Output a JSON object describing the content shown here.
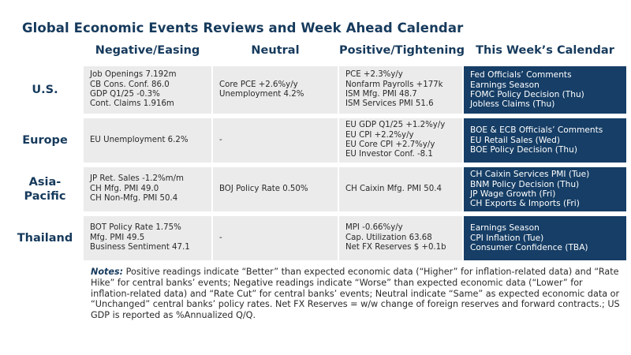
{
  "title": "Global Economic Events Reviews and Week Ahead Calendar",
  "columns": [
    "Negative/Easing",
    "Neutral",
    "Positive/Tightening",
    "This Week’s Calendar"
  ],
  "rows": [
    {
      "label": "U.S.",
      "negative": [
        "Job Openings 7.192m",
        "CB Cons. Conf. 86.0",
        "GDP Q1/25 -0.3%",
        "Cont. Claims 1.916m"
      ],
      "neutral": [
        "Core PCE +2.6%y/y",
        "Unemployment 4.2%"
      ],
      "positive": [
        "PCE +2.3%y/y",
        "Nonfarm Payrolls +177k",
        "ISM Mfg. PMI 48.7",
        "ISM Services PMI 51.6"
      ],
      "calendar": [
        "Fed Officials’ Comments",
        "Earnings Season",
        "FOMC Policy Decision (Thu)",
        "Jobless Claims (Thu)"
      ]
    },
    {
      "label": "Europe",
      "negative": [
        "EU Unemployment 6.2%"
      ],
      "neutral": [
        "-"
      ],
      "positive": [
        "EU GDP Q1/25 +1.2%y/y",
        "EU CPI +2.2%y/y",
        "EU Core CPI +2.7%y/y",
        "EU Investor Conf. -8.1"
      ],
      "calendar": [
        "BOE & ECB Officials’ Comments",
        "EU Retail Sales (Wed)",
        "BOE Policy Decision (Thu)"
      ]
    },
    {
      "label": [
        "Asia-",
        "Pacific"
      ],
      "negative": [
        "JP Ret. Sales -1.2%m/m",
        "CH Mfg. PMI 49.0",
        "CH Non-Mfg. PMI 50.4"
      ],
      "neutral": [
        "BOJ Policy Rate 0.50%"
      ],
      "positive": [
        "CH Caixin Mfg. PMI 50.4"
      ],
      "calendar": [
        "CH Caixin Services PMI (Tue)",
        "BNM Policy Decision (Thu)",
        "JP Wage Growth (Fri)",
        "CH Exports & Imports (Fri)"
      ]
    },
    {
      "label": "Thailand",
      "negative": [
        "BOT Policy Rate 1.75%",
        "Mfg. PMI 49.5",
        "Business Sentiment 47.1"
      ],
      "neutral": [
        "-"
      ],
      "positive": [
        "MPI -0.66%y/y",
        "Cap. Utilization 63.68",
        "Net FX Reserves $ +0.1b"
      ],
      "calendar": [
        "Earnings Season",
        "CPI Inflation (Tue)",
        "Consumer Confidence (TBA)"
      ]
    }
  ],
  "notes": {
    "label": "Notes:",
    "text": " Positive readings indicate “Better” than expected economic data (“Higher” for inflation-related data) and “Rate Hike” for central banks’ events; Negative readings indicate “Worse” than expected economic data (“Lower” for inflation-related data) and “Rate Cut” for central banks’ events; Neutral indicate “Same” as expected economic data or “Unchanged” central banks’ policy rates. Net FX Reserves = w/w change of foreign reserves and forward contracts.; US GDP is reported as %Annualized Q/Q."
  },
  "colors": {
    "header_text": "#163a5c",
    "calendar_bg": "#163e66",
    "cell_bg": "#ebebeb"
  }
}
